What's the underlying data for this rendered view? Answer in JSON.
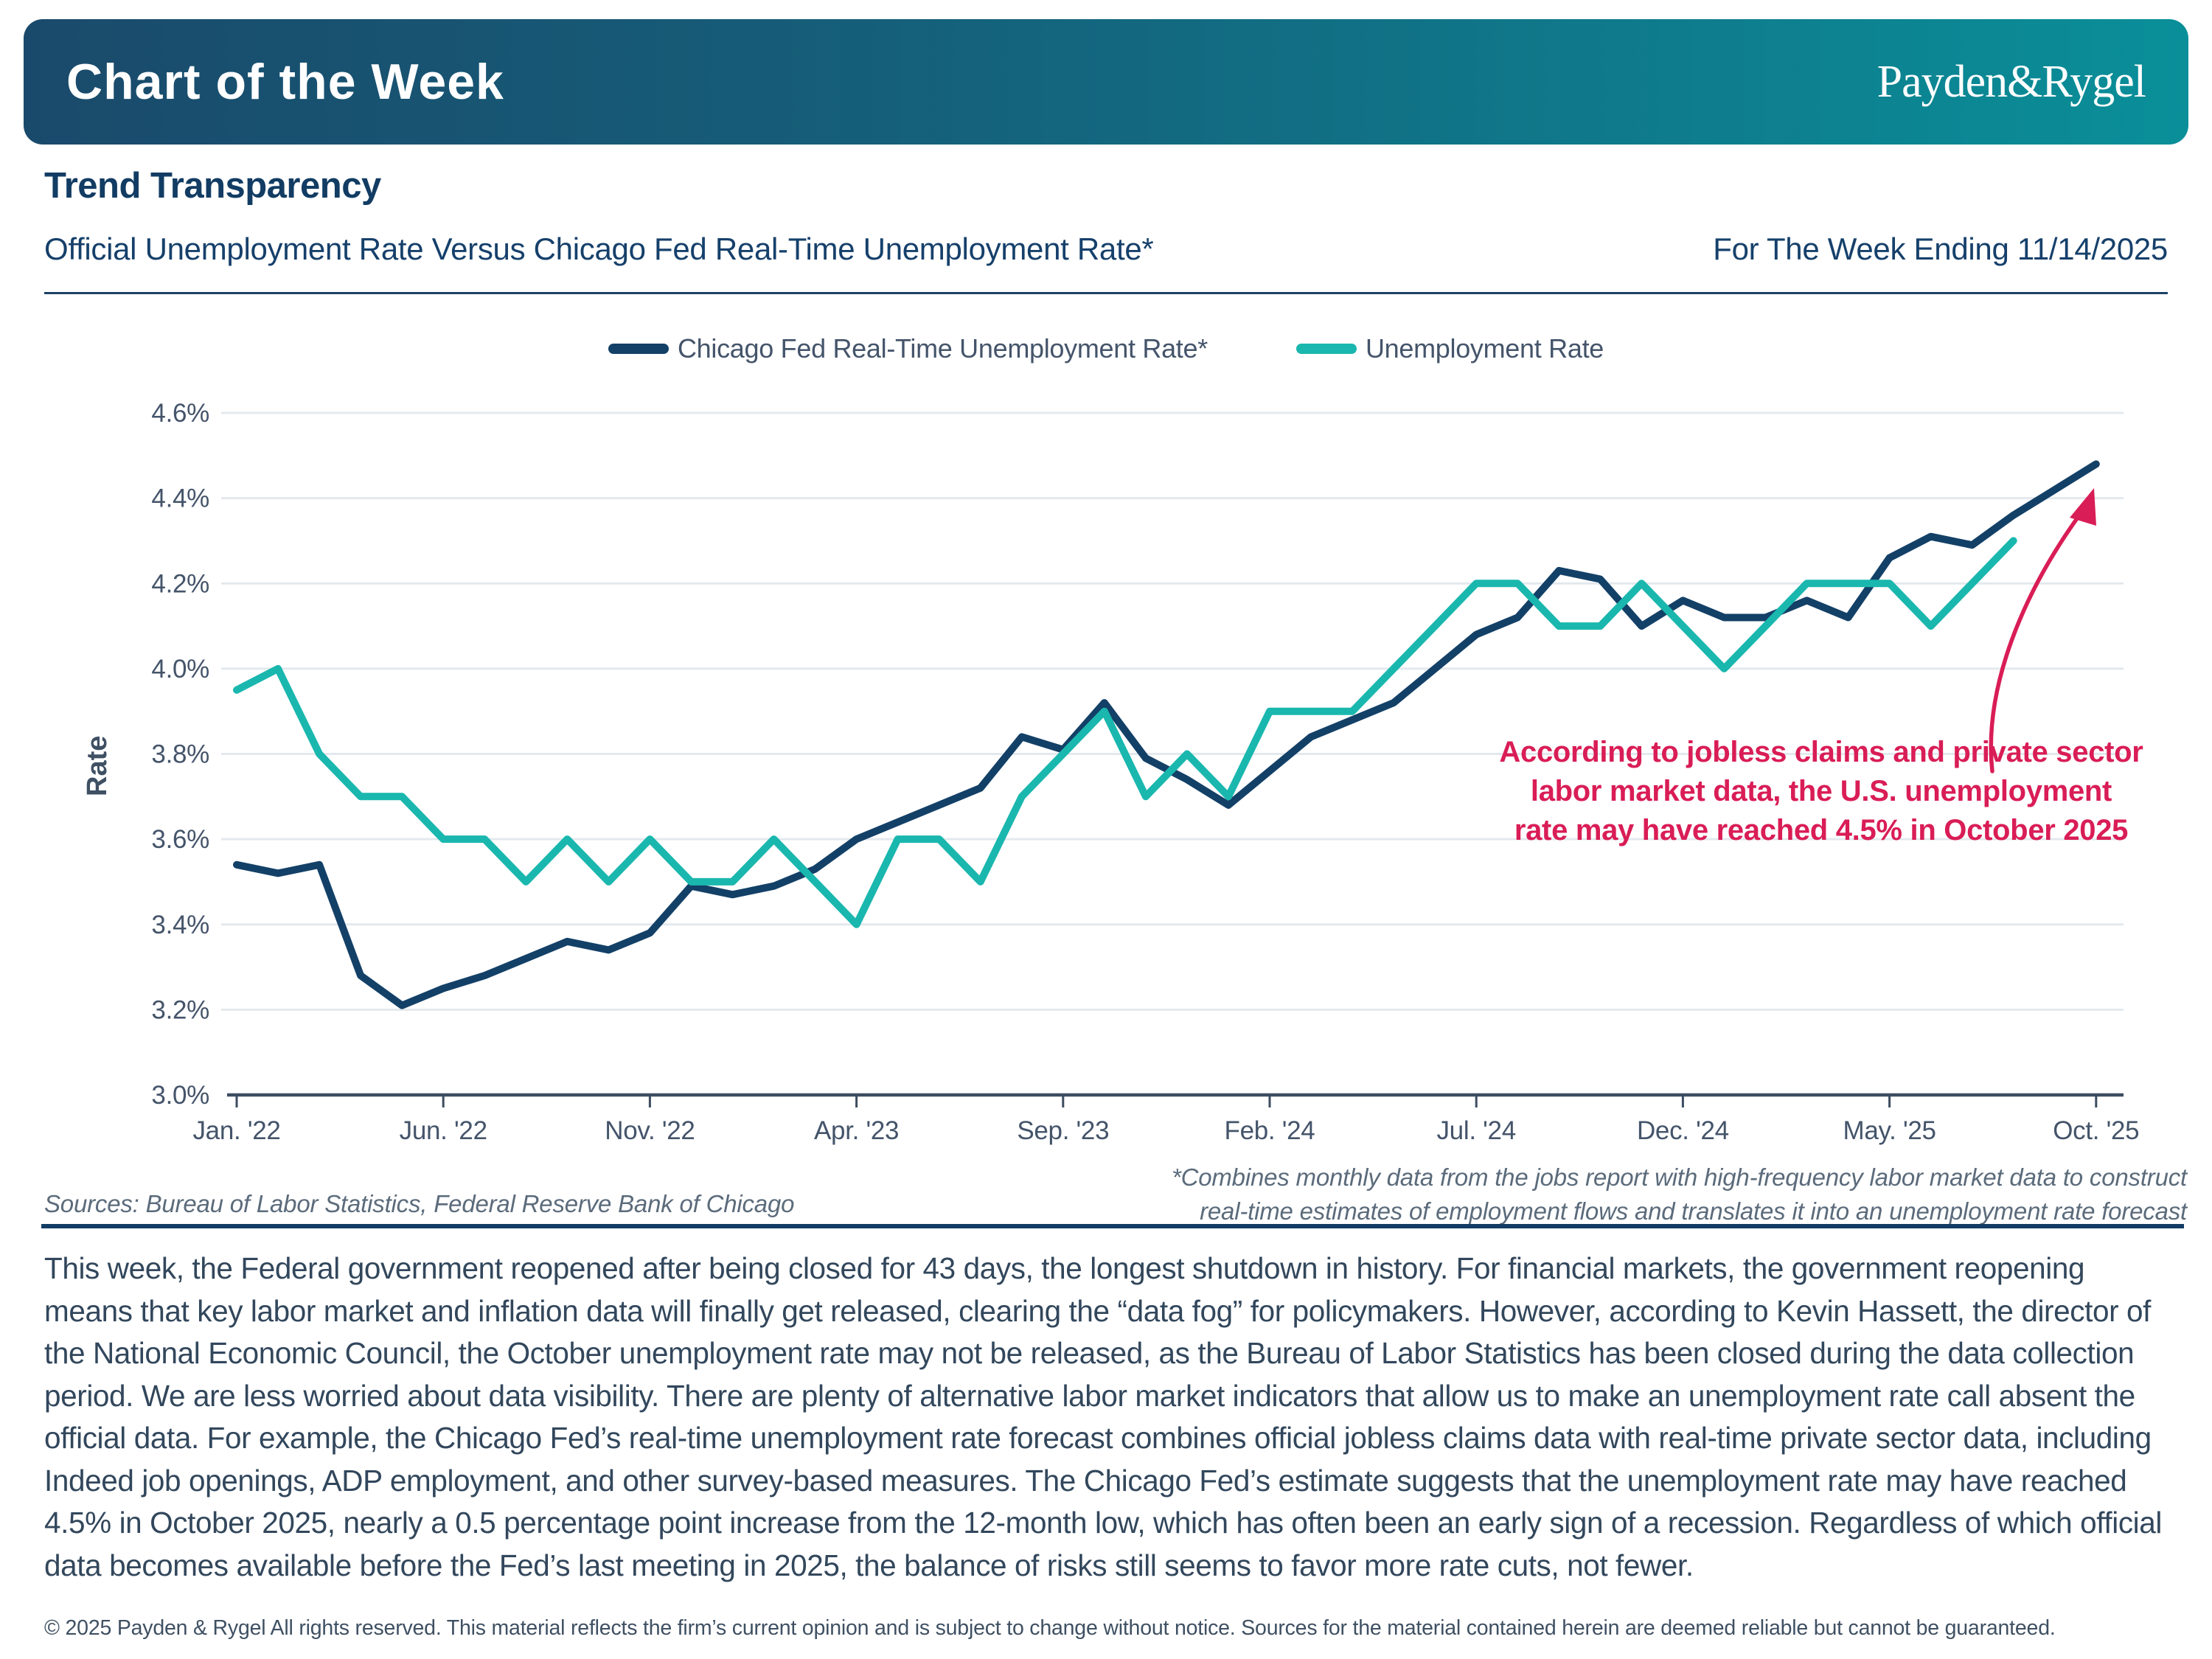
{
  "banner": {
    "title": "Chart of the Week",
    "logo": "Payden&Rygel"
  },
  "header": {
    "title": "Trend Transparency",
    "subtitle": "Official Unemployment Rate Versus Chicago Fed Real-Time Unemployment Rate*",
    "week_ending": "For The Week Ending 11/14/2025"
  },
  "chart_data": {
    "type": "line",
    "title": "Official Unemployment Rate Versus Chicago Fed Real-Time Unemployment Rate*",
    "xlabel": "",
    "ylabel": "Rate",
    "ylim": [
      3.0,
      4.6
    ],
    "ytick_step": 0.2,
    "ytick_format": "percent",
    "grid": "horizontal",
    "legend_position": "top",
    "x_start": "Jan. '22",
    "x_frequency": "monthly",
    "xticks": {
      "labels": [
        "Jan. '22",
        "Jun. '22",
        "Nov. '22",
        "Apr. '23",
        "Sep. '23",
        "Feb. '24",
        "Jul. '24",
        "Dec. '24",
        "May. '25",
        "Oct. '25"
      ],
      "month_index": [
        0,
        5,
        10,
        15,
        20,
        25,
        30,
        35,
        40,
        45
      ]
    },
    "series": [
      {
        "name": "Chicago Fed Real-Time Unemployment Rate*",
        "color": "#134067",
        "start_month": "Jan 2022",
        "end_month": "Oct 2025",
        "values": [
          3.54,
          3.52,
          3.54,
          3.28,
          3.21,
          3.25,
          3.28,
          3.32,
          3.36,
          3.34,
          3.38,
          3.49,
          3.47,
          3.49,
          3.53,
          3.6,
          3.64,
          3.68,
          3.72,
          3.84,
          3.81,
          3.92,
          3.79,
          3.74,
          3.68,
          3.76,
          3.84,
          3.88,
          3.92,
          4.0,
          4.08,
          4.12,
          4.23,
          4.21,
          4.1,
          4.16,
          4.12,
          4.12,
          4.16,
          4.12,
          4.26,
          4.31,
          4.29,
          4.36,
          4.42,
          4.48
        ]
      },
      {
        "name": "Unemployment Rate",
        "color": "#1ab7ae",
        "start_month": "Jan 2022",
        "end_month": "Aug 2025",
        "values": [
          3.95,
          4.0,
          3.8,
          3.7,
          3.7,
          3.6,
          3.6,
          3.5,
          3.6,
          3.5,
          3.6,
          3.5,
          3.5,
          3.6,
          3.5,
          3.4,
          3.6,
          3.6,
          3.5,
          3.7,
          3.8,
          3.9,
          3.7,
          3.8,
          3.7,
          3.9,
          3.9,
          3.9,
          4.0,
          4.1,
          4.2,
          4.2,
          4.1,
          4.1,
          4.2,
          4.1,
          4.0,
          4.1,
          4.2,
          4.2,
          4.2,
          4.1,
          4.2,
          4.3
        ]
      }
    ],
    "annotation": {
      "color": "#d91d56",
      "lines": [
        "According to jobless claims and private sector",
        "labor market data, the U.S. unemployment",
        "rate may have reached 4.5% in October 2025"
      ]
    }
  },
  "footnote": {
    "line1": "*Combines monthly data from the jobs report with high-frequency labor market data to construct",
    "line2": "real-time estimates of employment flows and translates it into an unemployment rate forecast"
  },
  "sources": "Sources: Bureau of Labor Statistics, Federal Reserve Bank of Chicago",
  "body": "This week, the Federal government reopened after being closed for 43 days, the longest shutdown in history. For financial markets, the government reopening means that key labor market and inflation data will finally get released, clearing the “data fog” for policymakers. However, according to Kevin Hassett, the director of the National Economic Council, the October unemployment rate may not be released, as the Bureau of Labor Statistics has been closed during the data collection period. We are less worried about data visibility. There are plenty of alternative labor market indicators that allow us to make an unemployment rate call absent the official data. For example, the Chicago Fed’s real-time unemployment rate forecast combines official jobless claims data with real-time private sector data, including Indeed job openings, ADP employment, and other survey-based measures. The Chicago Fed’s estimate suggests that the unemployment rate may have reached 4.5% in October 2025, nearly a 0.5 percentage point increase from the 12-month low, which has often been an early sign of a recession. Regardless of which official data becomes available before the Fed’s last meeting in 2025, the balance of risks still seems to favor more rate cuts, not fewer.",
  "footer": "© 2025 Payden & Rygel All rights reserved. This material reflects the firm’s current opinion and is subject to change without notice. Sources for the material contained herein are deemed reliable but cannot be guaranteed."
}
